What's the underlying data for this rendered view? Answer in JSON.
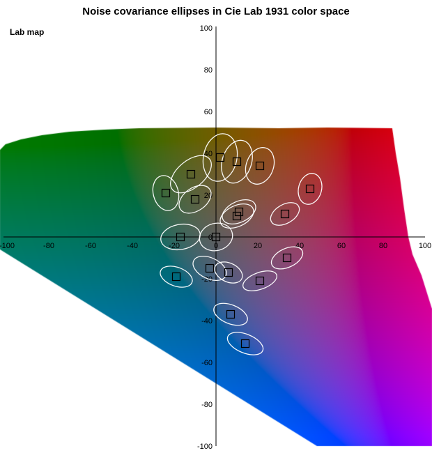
{
  "title": "Noise covariance ellipses in Cie Lab 1931 color space",
  "map_label": "Lab map",
  "colors": {
    "ellipse_stroke": "#ffffff",
    "marker_stroke": "#000000",
    "axis_color": "#000000",
    "page_background": "#ffffff",
    "out_of_gamut": "#ffffff"
  },
  "chart_data": {
    "type": "scatter",
    "title": "Noise covariance ellipses in Cie Lab 1931 color space",
    "xlabel": "",
    "ylabel": "",
    "xlim": [
      -100,
      100
    ],
    "ylim": [
      -100,
      100
    ],
    "x_ticks": [
      -100,
      -80,
      -60,
      -40,
      -20,
      0,
      20,
      40,
      60,
      80,
      100
    ],
    "y_ticks": [
      -100,
      -80,
      -60,
      -40,
      -20,
      0,
      20,
      40,
      60,
      80,
      100
    ],
    "grid": false,
    "legend": null,
    "background": {
      "kind": "cielab-slice",
      "L": 40,
      "out_of_gamut_color": "#ffffff"
    },
    "gamut_outline_ab": [
      [
        -103.3,
        41.7
      ],
      [
        -100.7,
        44.3
      ],
      [
        -93.3,
        46.7
      ],
      [
        -83.3,
        48.7
      ],
      [
        -70,
        50.3
      ],
      [
        -53.3,
        51.3
      ],
      [
        -36.7,
        52
      ],
      [
        0,
        52.3
      ],
      [
        30,
        52
      ],
      [
        53.3,
        52.3
      ],
      [
        84.3,
        52
      ],
      [
        86,
        40
      ],
      [
        88,
        28.3
      ],
      [
        90,
        13.3
      ],
      [
        92,
        0
      ],
      [
        94,
        -8.3
      ],
      [
        98.3,
        -18.3
      ],
      [
        103.3,
        -34.3
      ],
      [
        103.3,
        -100
      ],
      [
        48.3,
        -100
      ],
      [
        -103.3,
        -6
      ]
    ],
    "points": [
      {
        "a": 2,
        "b": 38,
        "ellipse": {
          "sx": 8,
          "sy": 11.5,
          "rot": 12
        }
      },
      {
        "a": 10,
        "b": 36,
        "ellipse": {
          "sx": 7,
          "sy": 10.5,
          "rot": 18
        }
      },
      {
        "a": 21,
        "b": 34,
        "ellipse": {
          "sx": 6.5,
          "sy": 9,
          "rot": 20
        }
      },
      {
        "a": -12,
        "b": 30,
        "ellipse": {
          "sx": 11.5,
          "sy": 6.5,
          "rot": -40
        }
      },
      {
        "a": 45,
        "b": 23,
        "ellipse": {
          "sx": 5.5,
          "sy": 7.5,
          "rot": 15
        }
      },
      {
        "a": -24,
        "b": 21,
        "ellipse": {
          "sx": 6,
          "sy": 8.5,
          "rot": -15
        }
      },
      {
        "a": -10,
        "b": 18,
        "ellipse": {
          "sx": 8.5,
          "sy": 5.5,
          "rot": -35
        }
      },
      {
        "a": 11,
        "b": 12,
        "ellipse": {
          "sx": 8.5,
          "sy": 5,
          "rot": -25
        }
      },
      {
        "a": 10,
        "b": 10,
        "ellipse": {
          "sx": 8.5,
          "sy": 5,
          "rot": -25
        }
      },
      {
        "a": 33,
        "b": 11,
        "ellipse": {
          "sx": 7.5,
          "sy": 4.5,
          "rot": -30
        }
      },
      {
        "a": -17,
        "b": 0,
        "ellipse": {
          "sx": 9.5,
          "sy": 6,
          "rot": -10
        }
      },
      {
        "a": 0,
        "b": 0,
        "ellipse": {
          "sx": 8,
          "sy": 6.5,
          "rot": -15
        }
      },
      {
        "a": 34,
        "b": -10,
        "ellipse": {
          "sx": 8,
          "sy": 4.5,
          "rot": -25
        }
      },
      {
        "a": -3,
        "b": -15,
        "ellipse": {
          "sx": 8.5,
          "sy": 5,
          "rot": 25
        }
      },
      {
        "a": 6,
        "b": -17,
        "ellipse": {
          "sx": 7,
          "sy": 4.5,
          "rot": 25
        }
      },
      {
        "a": -19,
        "b": -19,
        "ellipse": {
          "sx": 8,
          "sy": 4.5,
          "rot": 20
        }
      },
      {
        "a": 21,
        "b": -21,
        "ellipse": {
          "sx": 8.5,
          "sy": 4,
          "rot": -20
        }
      },
      {
        "a": 7,
        "b": -37,
        "ellipse": {
          "sx": 8.5,
          "sy": 4.5,
          "rot": 22
        }
      },
      {
        "a": 14,
        "b": -51,
        "ellipse": {
          "sx": 9,
          "sy": 4.5,
          "rot": 22
        }
      }
    ]
  }
}
